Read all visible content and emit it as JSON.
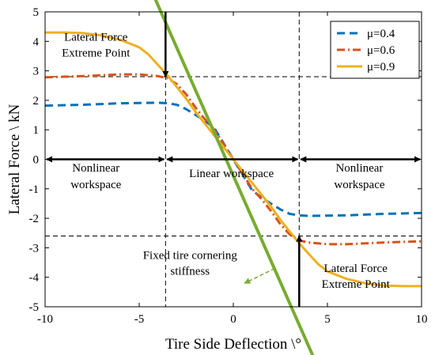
{
  "chart_data": {
    "type": "line",
    "xlabel": "Tire Side Deflection \\°",
    "ylabel": "Lateral Force \\ kN",
    "xlim": [
      -10,
      10
    ],
    "ylim": [
      -5,
      5
    ],
    "xticks": [
      -10,
      -5,
      0,
      5,
      10
    ],
    "yticks": [
      -5,
      -4,
      -3,
      -2,
      -1,
      0,
      1,
      2,
      3,
      4,
      5
    ],
    "grid": false,
    "legend_position": "top-right",
    "series": [
      {
        "name": "μ=0.4",
        "color": "#0072BD",
        "dash": "dashed",
        "x": [
          -10,
          -8,
          -6,
          -4,
          -3.5,
          -3,
          -2.5,
          -2,
          -1.5,
          -1,
          0,
          1,
          1.5,
          2,
          2.5,
          3,
          3.5,
          4,
          6,
          8,
          10
        ],
        "y": [
          1.82,
          1.85,
          1.9,
          1.92,
          1.9,
          1.85,
          1.7,
          1.5,
          1.3,
          1.05,
          0,
          -1.05,
          -1.3,
          -1.5,
          -1.7,
          -1.85,
          -1.9,
          -1.92,
          -1.9,
          -1.85,
          -1.82
        ]
      },
      {
        "name": "μ=0.6",
        "color": "#D95319",
        "dash": "dash-dot",
        "x": [
          -10,
          -8,
          -6,
          -5,
          -4,
          -3.5,
          -3,
          -2.5,
          -2,
          -1.5,
          -1,
          0,
          1,
          1.5,
          2,
          2.5,
          3,
          3.5,
          4,
          5,
          6,
          8,
          10
        ],
        "y": [
          2.78,
          2.82,
          2.88,
          2.88,
          2.82,
          2.75,
          2.55,
          2.2,
          1.75,
          1.35,
          1.0,
          0,
          -1.0,
          -1.35,
          -1.75,
          -2.2,
          -2.55,
          -2.75,
          -2.82,
          -2.88,
          -2.88,
          -2.82,
          -2.78
        ]
      },
      {
        "name": "μ=0.9",
        "color": "#EDB120",
        "dash": "solid",
        "x": [
          -10,
          -9,
          -8,
          -7,
          -6,
          -5,
          -4.5,
          -4,
          -3.5,
          -3,
          -2.5,
          -2,
          -1,
          0,
          1,
          2,
          2.5,
          3,
          3.5,
          4,
          4.5,
          5,
          6,
          7,
          8,
          9,
          10
        ],
        "y": [
          4.3,
          4.3,
          4.28,
          4.2,
          4.05,
          3.8,
          3.55,
          3.2,
          2.85,
          2.45,
          2.05,
          1.6,
          0.8,
          0,
          -0.8,
          -1.6,
          -2.05,
          -2.45,
          -2.85,
          -3.2,
          -3.55,
          -3.8,
          -4.05,
          -4.2,
          -4.28,
          -4.3,
          -4.3
        ]
      }
    ],
    "reference_lines": {
      "vertical_x": [
        -3.6,
        3.5
      ],
      "horizontal_y": [
        2.8,
        -2.6
      ]
    },
    "stiffness_line": {
      "color": "#77AC30",
      "from": [
        -5.3,
        7.1
      ],
      "to": [
        4.6,
        -7.2
      ],
      "dashed_arrow_from": [
        2.2,
        -3.7
      ],
      "dashed_arrow_to": [
        0.6,
        -4.2
      ]
    },
    "workspace_arrows": [
      {
        "from": -10,
        "to": -3.6,
        "y": 0
      },
      {
        "from": -3.6,
        "to": 3.5,
        "y": 0
      },
      {
        "from": 3.5,
        "to": 10,
        "y": 0
      }
    ],
    "marker_arrows": [
      {
        "x": -3.6,
        "from_y": 5,
        "to_y": 2.8
      },
      {
        "x": 3.5,
        "from_y": -5,
        "to_y": -2.6
      }
    ],
    "annotations": {
      "extreme_top_line1": "Lateral Force",
      "extreme_top_line2": "Extreme Point",
      "nonlinear_left_line1": "Nonlinear",
      "nonlinear_left_line2": "workspace",
      "linear": "Linear workspace",
      "nonlinear_right_line1": "Nonlinear",
      "nonlinear_right_line2": "workspace",
      "stiffness_line1": "Fixed tire cornering",
      "stiffness_line2": "stiffness",
      "extreme_bottom_line1": "Lateral Force",
      "extreme_bottom_line2": "Extreme Point"
    }
  }
}
